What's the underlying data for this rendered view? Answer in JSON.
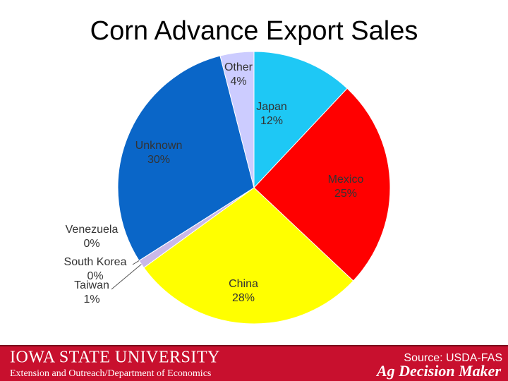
{
  "chart_data": {
    "type": "pie",
    "title": "Corn Advance Export Sales",
    "categories": [
      "Japan",
      "Mexico",
      "China",
      "Taiwan",
      "South Korea",
      "Venezuela",
      "Unknown",
      "Other"
    ],
    "values": [
      12,
      25,
      28,
      1,
      0,
      0,
      30,
      4
    ],
    "value_labels": [
      "12%",
      "25%",
      "28%",
      "1%",
      "0%",
      "0%",
      "30%",
      "4%"
    ],
    "colors": [
      "#1ec8f5",
      "#ff0000",
      "#ffff00",
      "#c9b8e8",
      "#b39ddb",
      "#9fa8da",
      "#0a66c8",
      "#ccccff"
    ],
    "source": "Source: USDA-FAS"
  },
  "footer": {
    "university": "Iowa State University",
    "department": "Extension and Outreach/Department of Economics",
    "brand": "Ag Decision Maker"
  }
}
